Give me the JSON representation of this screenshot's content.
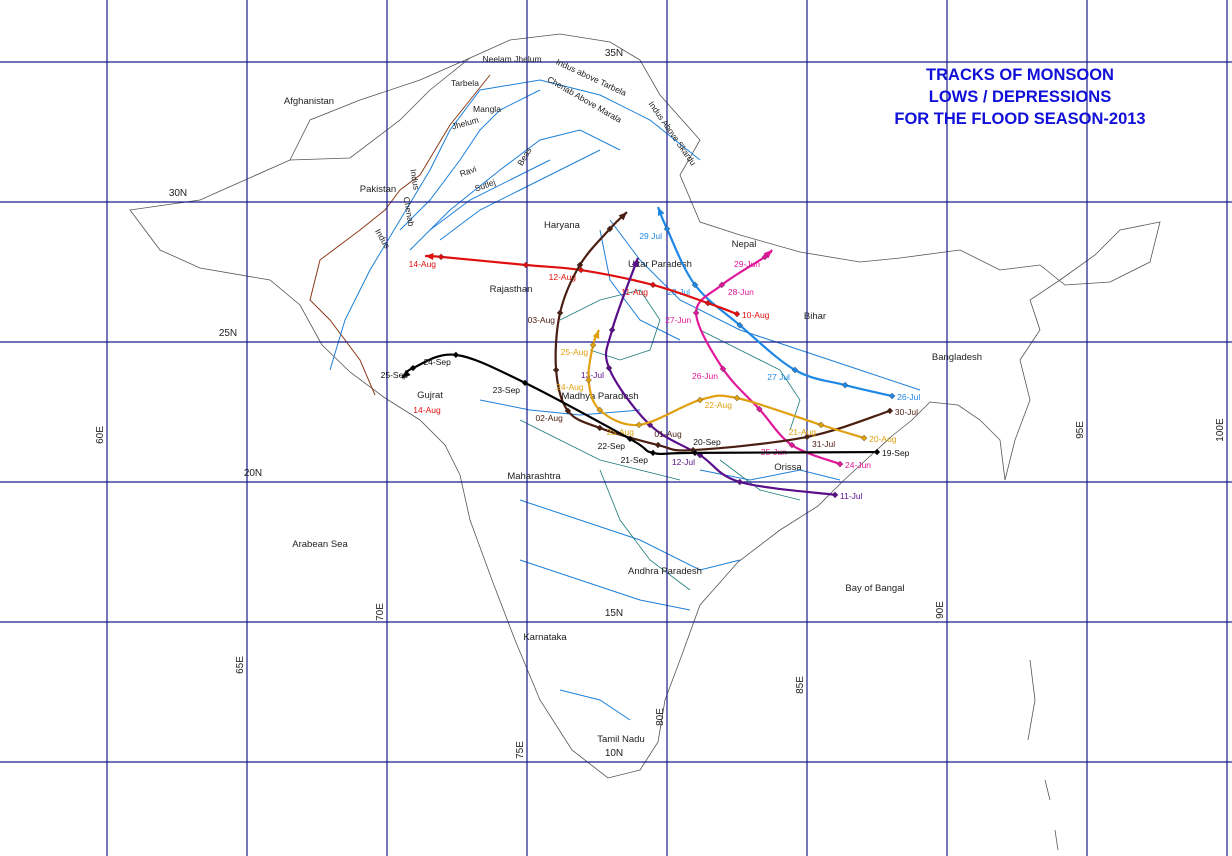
{
  "title": {
    "line1": "TRACKS OF MONSOON",
    "line2": "LOWS / DEPRESSIONS",
    "line3": "FOR THE FLOOD SEASON-2013",
    "color": "#1010d8"
  },
  "grid": {
    "longitudes": [
      60,
      65,
      70,
      75,
      80,
      85,
      90,
      95,
      100
    ],
    "latitudes": [
      35,
      30,
      25,
      20,
      15,
      10
    ],
    "lon_labels": [
      "60E",
      "65E",
      "70E",
      "75E",
      "80E",
      "85E",
      "90E",
      "95E",
      "100E"
    ],
    "lat_labels": [
      "35N",
      "30N",
      "25N",
      "20N",
      "15N",
      "10N"
    ],
    "line_color": "#1a1a8c"
  },
  "regions": [
    "Afghanistan",
    "Pakistan",
    "Haryana",
    "Uttar Paradesh",
    "Nepal",
    "Rajasthan",
    "Bihar",
    "Bangladesh",
    "Gujrat",
    "Madhya Paradesh",
    "Maharashtra",
    "Orissa",
    "Arabean Sea",
    "Andhra Paradesh",
    "Bay of Bangal",
    "Karnataka",
    "Tamil Nadu"
  ],
  "rivers": [
    "Neelam Jhelum",
    "Indus above Tarbela",
    "Tarbela",
    "Mangla",
    "Jhelum",
    "Chenab Above Marala",
    "Beas",
    "Ravi",
    "Sutlej",
    "Indus Above Skardu",
    "Indus",
    "Chenab",
    "Indus"
  ],
  "tracks": [
    {
      "color": "#1e88e5",
      "points": [
        [
          88.04,
          23.07,
          "26-Jul"
        ],
        [
          86.36,
          23.46,
          ""
        ],
        [
          84.57,
          24.0,
          "27 Jul"
        ],
        [
          82.6,
          25.6,
          ""
        ],
        [
          81.0,
          27.04,
          "28 Jul"
        ],
        [
          80.0,
          29.04,
          "29 Jul"
        ],
        [
          79.68,
          29.82,
          ""
        ]
      ]
    },
    {
      "color": "#e0189a",
      "points": [
        [
          86.18,
          20.64,
          "24-Jun"
        ],
        [
          84.46,
          21.32,
          "25-Jun"
        ],
        [
          83.3,
          22.6,
          ""
        ],
        [
          82.0,
          24.04,
          "26-Jun"
        ],
        [
          81.04,
          26.04,
          "27-Jun"
        ],
        [
          81.96,
          27.04,
          "28-Jun"
        ],
        [
          83.5,
          28.04,
          "29-Jun"
        ],
        [
          83.75,
          28.29,
          ""
        ]
      ]
    },
    {
      "color": "#e01010",
      "points": [
        [
          82.5,
          26.0,
          "10-Aug"
        ],
        [
          81.46,
          26.39,
          ""
        ],
        [
          79.5,
          27.04,
          "11-Aug"
        ],
        [
          76.93,
          27.57,
          "12-Aug"
        ],
        [
          74.96,
          27.75,
          ""
        ],
        [
          71.93,
          28.04,
          "14-Aug"
        ],
        [
          71.36,
          28.07,
          ""
        ]
      ]
    },
    {
      "color": "#5a0f8a",
      "points": [
        [
          86.0,
          19.54,
          "11-Jul"
        ],
        [
          82.6,
          20.0,
          ""
        ],
        [
          81.18,
          20.96,
          "12-Jul"
        ],
        [
          79.39,
          22.04,
          ""
        ],
        [
          77.93,
          24.07,
          "13-Jul"
        ],
        [
          78.04,
          25.43,
          ""
        ],
        [
          78.96,
          28.0,
          ""
        ]
      ]
    },
    {
      "color": "#4a1e10",
      "points": [
        [
          87.96,
          22.54,
          "30-Jul"
        ],
        [
          85.0,
          21.61,
          "31-Jul"
        ],
        [
          80.93,
          21.14,
          ""
        ],
        [
          79.68,
          21.32,
          "01-Aug"
        ],
        [
          77.6,
          21.93,
          ""
        ],
        [
          76.46,
          22.54,
          "02-Aug"
        ],
        [
          76.04,
          24.0,
          ""
        ],
        [
          76.18,
          26.04,
          "03-Aug"
        ],
        [
          76.89,
          27.75,
          ""
        ],
        [
          77.96,
          29.04,
          ""
        ],
        [
          78.57,
          29.64,
          ""
        ]
      ]
    },
    {
      "color": "#e0a010",
      "points": [
        [
          87.04,
          21.57,
          "20-Aug"
        ],
        [
          85.5,
          22.04,
          "21-Aug"
        ],
        [
          82.5,
          23.0,
          "22-Aug"
        ],
        [
          81.18,
          22.93,
          ""
        ],
        [
          79.0,
          22.04,
          "23-Aug"
        ],
        [
          77.6,
          22.57,
          ""
        ],
        [
          77.2,
          23.64,
          "24-Aug"
        ],
        [
          77.36,
          24.89,
          "25-Aug"
        ],
        [
          77.57,
          25.43,
          ""
        ]
      ]
    },
    {
      "color": "#000000",
      "points": [
        [
          87.5,
          21.07,
          "19-Sep"
        ],
        [
          81.0,
          21.04,
          "20-Sep"
        ],
        [
          79.5,
          21.04,
          "21-Sep"
        ],
        [
          78.68,
          21.54,
          "22-Sep"
        ],
        [
          74.93,
          23.54,
          "23-Sep"
        ],
        [
          72.46,
          24.54,
          "24-Sep"
        ],
        [
          70.93,
          24.07,
          "25-Sep"
        ],
        [
          70.54,
          23.71,
          ""
        ]
      ]
    }
  ],
  "extra_labels": [
    {
      "text": "14-Aug",
      "color": "#e01010"
    }
  ]
}
